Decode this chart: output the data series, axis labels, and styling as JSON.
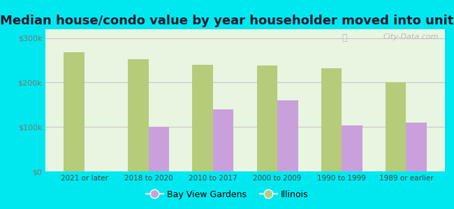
{
  "title": "Median house/condo value by year householder moved into unit",
  "categories": [
    "2021 or later",
    "2018 to 2020",
    "2010 to 2017",
    "2000 to 2009",
    "1990 to 1999",
    "1989 or earlier"
  ],
  "bay_view_gardens": [
    null,
    100000,
    140000,
    160000,
    103000,
    110000
  ],
  "illinois": [
    268000,
    252000,
    240000,
    238000,
    232000,
    200000
  ],
  "bar_color_bvg": "#c9a0dc",
  "bar_color_il": "#b5cc7a",
  "background_outer": "#00e8ef",
  "background_inner": "#e8f5e0",
  "grid_color": "#c8c8c8",
  "title_fontsize": 13,
  "legend_label_bvg": "Bay View Gardens",
  "legend_label_il": "Illinois",
  "ylim": [
    0,
    320000
  ],
  "yticks": [
    0,
    100000,
    200000,
    300000
  ],
  "ytick_labels": [
    "$0",
    "$100k",
    "$200k",
    "$300k"
  ],
  "watermark": "City-Data.com"
}
